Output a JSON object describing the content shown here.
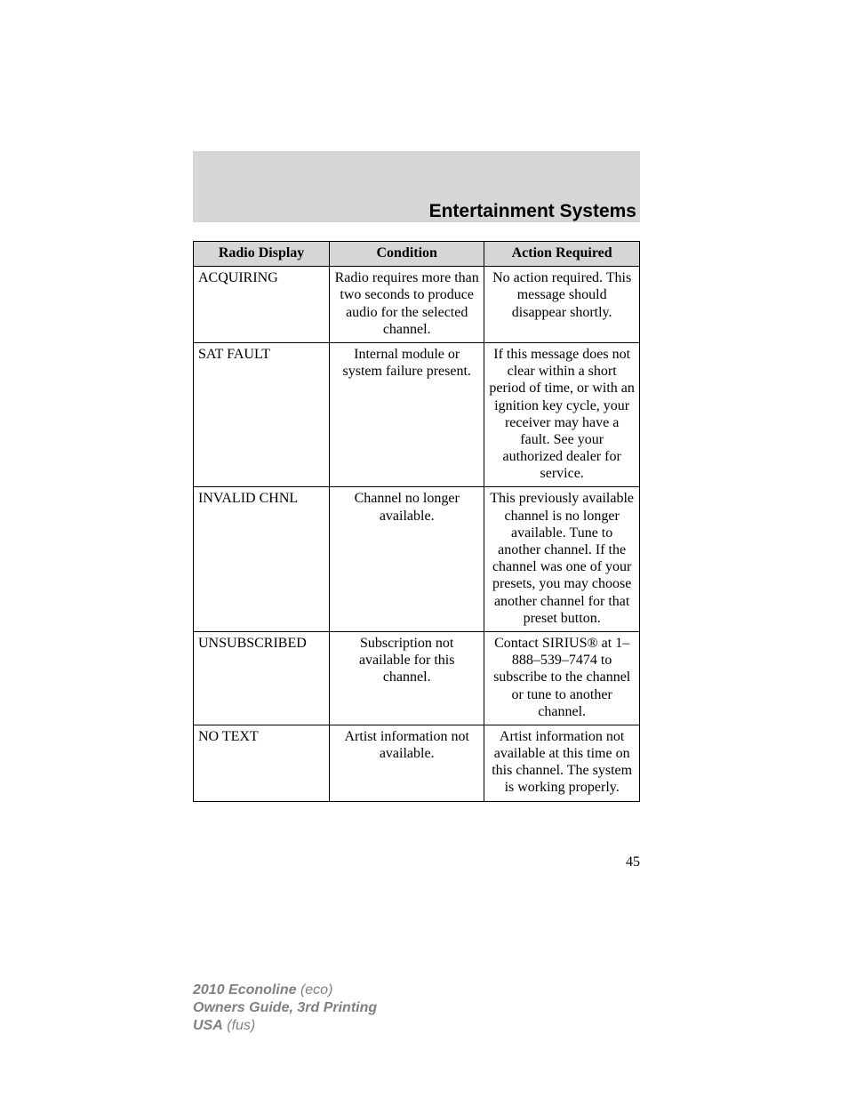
{
  "section_title": "Entertainment Systems",
  "page_number": "45",
  "table": {
    "headers": [
      "Radio Display",
      "Condition",
      "Action Required"
    ],
    "rows": [
      {
        "display": "ACQUIRING",
        "condition": "Radio requires more than two seconds to produce audio for the selected channel.",
        "action": "No action required. This message should disappear shortly."
      },
      {
        "display": "SAT FAULT",
        "condition": "Internal module or system failure present.",
        "action": "If this message does not clear within a short period of time, or with an ignition key cycle, your receiver may have a fault. See your authorized dealer for service."
      },
      {
        "display": "INVALID CHNL",
        "condition": "Channel no longer available.",
        "action": "This previously available channel is no longer available. Tune to another channel. If the channel was one of your presets, you may choose another channel for that preset button."
      },
      {
        "display": "UNSUBSCRIBED",
        "condition": "Subscription not available for this channel.",
        "action": "Contact SIRIUS® at 1–888–539–7474 to subscribe to the channel or tune to another channel."
      },
      {
        "display": "NO TEXT",
        "condition": "Artist information not available.",
        "action": "Artist information not available at this time on this channel. The system is working properly."
      }
    ]
  },
  "footer": {
    "line1_bold": "2010 Econoline",
    "line1_ital": "(eco)",
    "line2_bold": "Owners Guide, 3rd Printing",
    "line3_bold": "USA",
    "line3_ital": "(fus)"
  }
}
